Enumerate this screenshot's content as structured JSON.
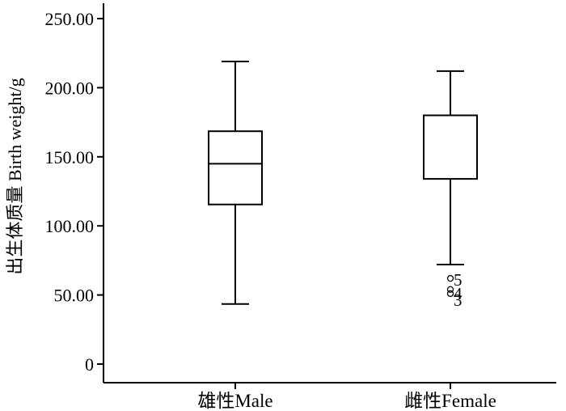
{
  "chart_data": {
    "type": "box",
    "ylabel": "出生体质量 Birth weight/g",
    "xlabel": "",
    "ylim": [
      0,
      250
    ],
    "yticks": [
      {
        "value": 0,
        "label": "0"
      },
      {
        "value": 50,
        "label": "50.00"
      },
      {
        "value": 100,
        "label": "100.00"
      },
      {
        "value": 150,
        "label": "150.00"
      },
      {
        "value": 200,
        "label": "200.00"
      },
      {
        "value": 250,
        "label": "250.00"
      }
    ],
    "grid": false,
    "categories": [
      "雄性Male",
      "雌性Female"
    ],
    "boxes": [
      {
        "category": "雄性Male",
        "whisker_low": 43.5,
        "q1": 115.5,
        "median": 145,
        "q3": 168.5,
        "whisker_high": 219,
        "outliers": []
      },
      {
        "category": "雌性Female",
        "whisker_low": 72,
        "q1": 134,
        "median": null,
        "q3": 180,
        "whisker_high": 212,
        "outliers": [
          {
            "label": "5",
            "value": 62
          },
          {
            "label": "4",
            "value": 54
          },
          {
            "label": "3",
            "value": 51
          }
        ]
      }
    ]
  }
}
